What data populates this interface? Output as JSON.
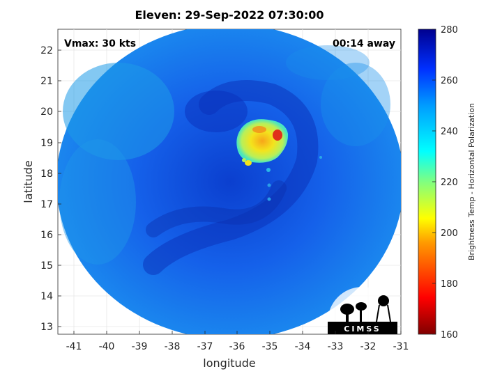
{
  "title": "Eleven: 29-Sep-2022 07:30:00",
  "vmax_text": "Vmax: 30 kts",
  "away_text": "00:14 away",
  "xlabel": "longitude",
  "ylabel": "latitude",
  "x_ticks": [
    "-41",
    "-40",
    "-39",
    "-38",
    "-37",
    "-36",
    "-35",
    "-34",
    "-33",
    "-32",
    "-31"
  ],
  "y_ticks": [
    "22",
    "21",
    "20",
    "19",
    "18",
    "17",
    "16",
    "15",
    "14",
    "13"
  ],
  "colorbar": {
    "label": "Brightness Temp - Horizontal Polarization",
    "ticks": [
      "280",
      "260",
      "240",
      "220",
      "200",
      "180",
      "160"
    ],
    "range": [
      160,
      280
    ]
  },
  "logo_text": "CIMSS",
  "colors": {
    "background_blue": "#1565ee",
    "cold_core": "#f2e21a",
    "dark_ring": "#0a2fb8"
  }
}
